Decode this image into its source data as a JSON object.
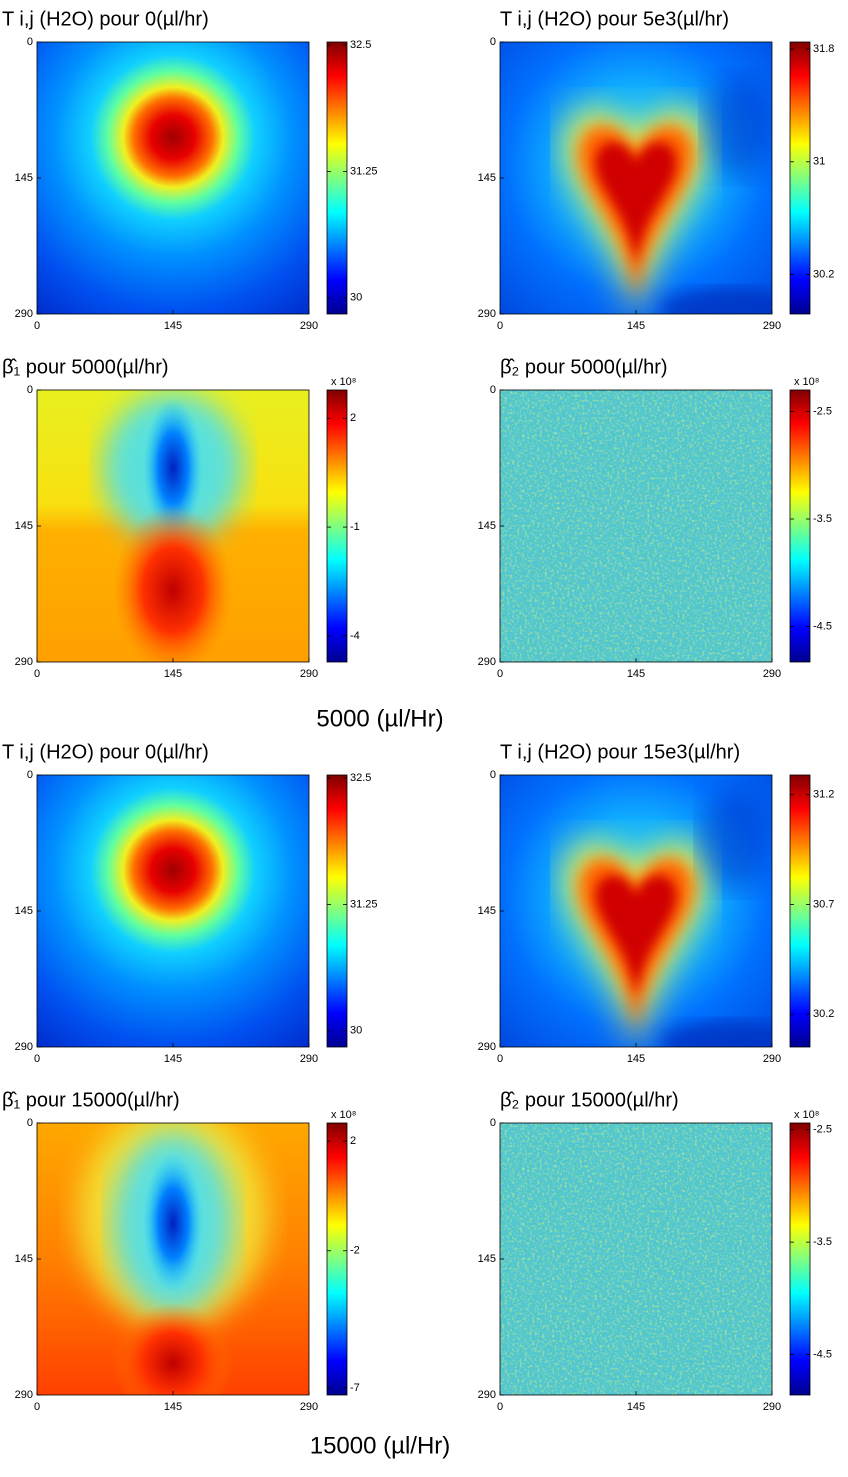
{
  "chart_data": [
    {
      "type": "heatmap",
      "title": "T i,j (H2O) pour 0(µl/hr)",
      "colormap": "jet",
      "xlim": [
        0,
        290
      ],
      "ylim": [
        290,
        0
      ],
      "xticks": [
        0,
        145,
        290
      ],
      "yticks": [
        0,
        145,
        290
      ],
      "clim": [
        29.84,
        32.53
      ],
      "cticks": [
        30,
        31.25,
        32.5
      ]
    },
    {
      "type": "heatmap",
      "title": "T i,j (H2O) pour 5e3(µl/hr)",
      "colormap": "jet",
      "xlim": [
        0,
        290
      ],
      "ylim": [
        290,
        0
      ],
      "xticks": [
        0,
        145,
        290
      ],
      "yticks": [
        0,
        145,
        290
      ],
      "clim": [
        29.92,
        31.85
      ],
      "cticks": [
        30.2,
        31,
        31.8
      ]
    },
    {
      "type": "heatmap",
      "title": "β̂₁ pour 5000(µl/hr)",
      "colormap": "jet",
      "xlim": [
        0,
        290
      ],
      "ylim": [
        290,
        0
      ],
      "xticks": [
        0,
        145,
        290
      ],
      "yticks": [
        0,
        145,
        290
      ],
      "clim": [
        -4.72,
        2.78
      ],
      "cticks": [
        2,
        -1,
        -4
      ],
      "colorbar_scale": "x 10⁸"
    },
    {
      "type": "heatmap",
      "title": "β̂₂ pour 5000(µl/hr)",
      "colormap": "jet",
      "xlim": [
        0,
        290
      ],
      "ylim": [
        290,
        0
      ],
      "xticks": [
        0,
        145,
        290
      ],
      "yticks": [
        0,
        145,
        290
      ],
      "clim": [
        -4.83,
        -2.3
      ],
      "cticks": [
        -2.5,
        -3.5,
        -4.5
      ],
      "colorbar_scale": "x 10⁸"
    },
    {
      "type": "heatmap",
      "title": "T i,j (H2O) pour 0(µl/hr)",
      "colormap": "jet",
      "xlim": [
        0,
        290
      ],
      "ylim": [
        290,
        0
      ],
      "xticks": [
        0,
        145,
        290
      ],
      "yticks": [
        0,
        145,
        290
      ],
      "clim": [
        29.84,
        32.53
      ],
      "cticks": [
        30,
        31.25,
        32.5
      ]
    },
    {
      "type": "heatmap",
      "title": "T i,j (H2O) pour 15e3(µl/hr)",
      "colormap": "jet",
      "xlim": [
        0,
        290
      ],
      "ylim": [
        290,
        0
      ],
      "xticks": [
        0,
        145,
        290
      ],
      "yticks": [
        0,
        145,
        290
      ],
      "clim": [
        30.05,
        31.29
      ],
      "cticks": [
        31.2,
        30.7,
        30.2
      ]
    },
    {
      "type": "heatmap",
      "title": "β̂₁ pour 15000(µl/hr)",
      "colormap": "jet",
      "xlim": [
        0,
        290
      ],
      "ylim": [
        290,
        0
      ],
      "xticks": [
        0,
        145,
        290
      ],
      "yticks": [
        0,
        145,
        290
      ],
      "clim": [
        -7.26,
        2.66
      ],
      "cticks": [
        2,
        -2,
        -7
      ],
      "colorbar_scale": "x 10⁸"
    },
    {
      "type": "heatmap",
      "title": "β̂₂ pour 15000(µl/hr)",
      "colormap": "jet",
      "xlim": [
        0,
        290
      ],
      "ylim": [
        290,
        0
      ],
      "xticks": [
        0,
        145,
        290
      ],
      "yticks": [
        0,
        145,
        290
      ],
      "clim": [
        -4.86,
        -2.44
      ],
      "cticks": [
        -2.5,
        -3.5,
        -4.5
      ],
      "colorbar_scale": "x 10⁸"
    }
  ],
  "captions": [
    "5000 (µl/Hr)",
    "15000 (µl/Hr)"
  ]
}
